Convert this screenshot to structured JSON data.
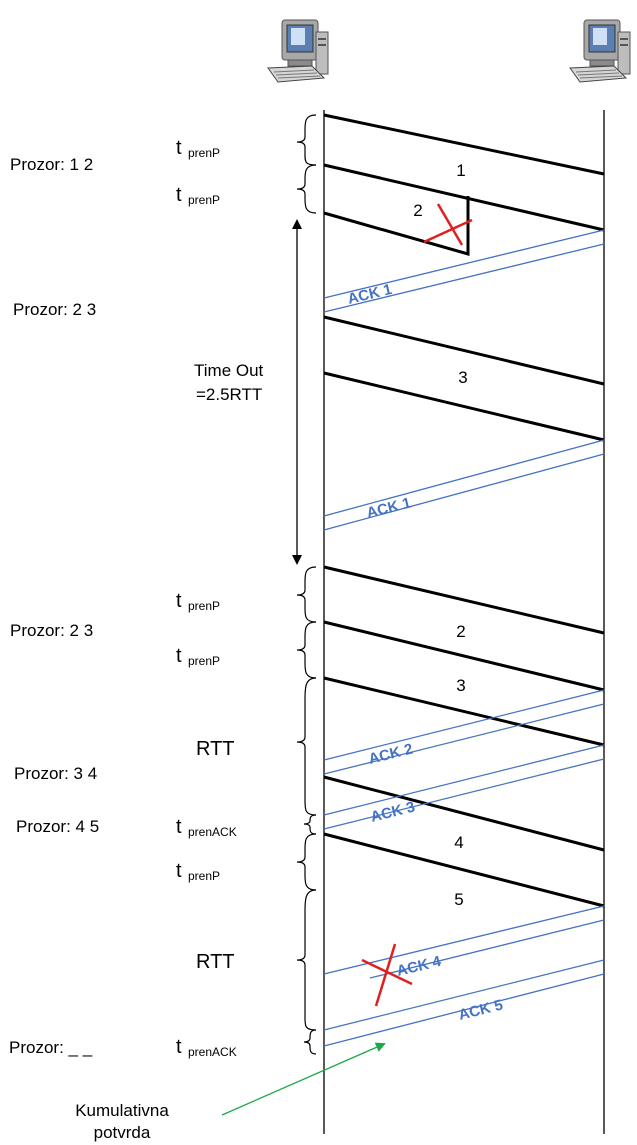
{
  "diagram": {
    "nodes": {
      "sender": {
        "icon": "computer-icon"
      },
      "receiver": {
        "icon": "computer-icon"
      }
    },
    "window_labels": [
      "Prozor: 1 2",
      "Prozor: 2 3",
      "Prozor: 2 3",
      "Prozor: 3 4",
      "Prozor: 4 5",
      "Prozor: _ _"
    ],
    "timing_labels": {
      "t": "t",
      "prenP": "prenP",
      "prenACK": "prenACK",
      "rtt": "RTT",
      "timeout_line1": "Time Out",
      "timeout_line2": "=2.5RTT"
    },
    "packets": [
      "1",
      "2",
      "3",
      "2",
      "3",
      "4",
      "5"
    ],
    "acks": [
      "ACK 1",
      "ACK 1",
      "ACK 2",
      "ACK 3",
      "ACK 4",
      "ACK 5"
    ],
    "note_line1": "Kumulativna",
    "note_line2": "potvrda",
    "colors": {
      "packet": "#000000",
      "ack": "#4472c4",
      "loss": "#e02020",
      "note_arrow": "#1aa84a"
    }
  }
}
